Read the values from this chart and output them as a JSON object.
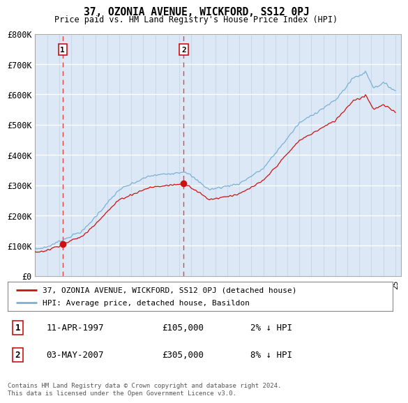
{
  "title": "37, OZONIA AVENUE, WICKFORD, SS12 0PJ",
  "subtitle": "Price paid vs. HM Land Registry's House Price Index (HPI)",
  "hpi_label": "HPI: Average price, detached house, Basildon",
  "property_label": "37, OZONIA AVENUE, WICKFORD, SS12 0PJ (detached house)",
  "transactions": [
    {
      "num": 1,
      "date": "11-APR-1997",
      "price": 105000,
      "hpi_rel": "2% ↓ HPI",
      "year": 1997.28
    },
    {
      "num": 2,
      "date": "03-MAY-2007",
      "price": 305000,
      "hpi_rel": "8% ↓ HPI",
      "year": 2007.37
    }
  ],
  "ylim": [
    0,
    800000
  ],
  "xlim_start": 1995.0,
  "xlim_end": 2025.5,
  "background_color": "#ffffff",
  "plot_bg_color": "#dce8f5",
  "grid_color_h": "#ffffff",
  "grid_color_v": "#c8d8e8",
  "hpi_line_color": "#7ab0d8",
  "property_line_color": "#cc1111",
  "dashed_vline_color": "#dd4444",
  "marker_color": "#cc1111",
  "footer_text": "Contains HM Land Registry data © Crown copyright and database right 2024.\nThis data is licensed under the Open Government Licence v3.0.",
  "yticks": [
    0,
    100000,
    200000,
    300000,
    400000,
    500000,
    600000,
    700000,
    800000
  ],
  "ytick_labels": [
    "£0",
    "£100K",
    "£200K",
    "£300K",
    "£400K",
    "£500K",
    "£600K",
    "£700K",
    "£800K"
  ]
}
